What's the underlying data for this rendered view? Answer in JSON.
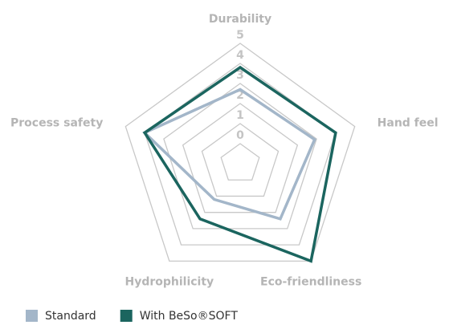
{
  "chart_data": {
    "type": "radar",
    "categories": [
      "Durability",
      "Hand feel",
      "Eco-friendliness",
      "Hydrophilicity",
      "Process safety"
    ],
    "series": [
      {
        "name": "Standard",
        "color": "#a3b6c9",
        "values": [
          2.7,
          2.9,
          2.4,
          1.2,
          4
        ]
      },
      {
        "name": "With BeSo®SOFT",
        "color": "#1b655f",
        "values": [
          3.8,
          4,
          5,
          2.4,
          4
        ]
      }
    ],
    "ylim": [
      -1,
      5
    ],
    "yticks": [
      0,
      1,
      2,
      3,
      4,
      5
    ],
    "grid": true,
    "legend": "bottom-left"
  }
}
